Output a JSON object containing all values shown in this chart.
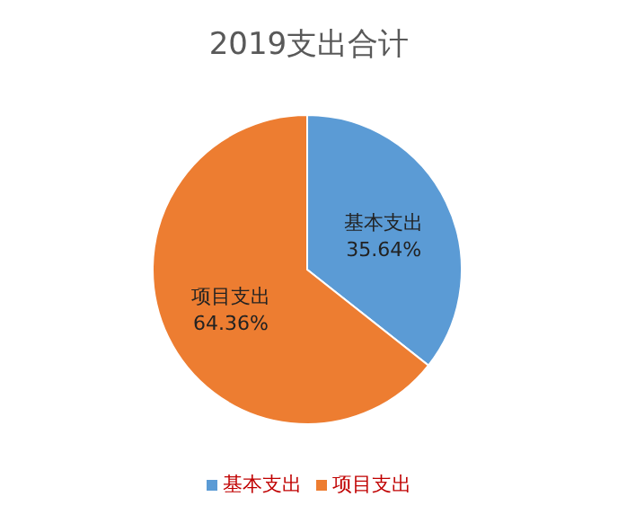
{
  "chart_data": {
    "type": "pie",
    "title": "2019支出合计",
    "categories": [
      "基本支出",
      "项目支出"
    ],
    "values": [
      35.64,
      64.36
    ],
    "colors": [
      "#5b9bd5",
      "#ed7d31"
    ],
    "value_labels": [
      "35.64%",
      "64.36%"
    ],
    "legend": "bottom"
  }
}
